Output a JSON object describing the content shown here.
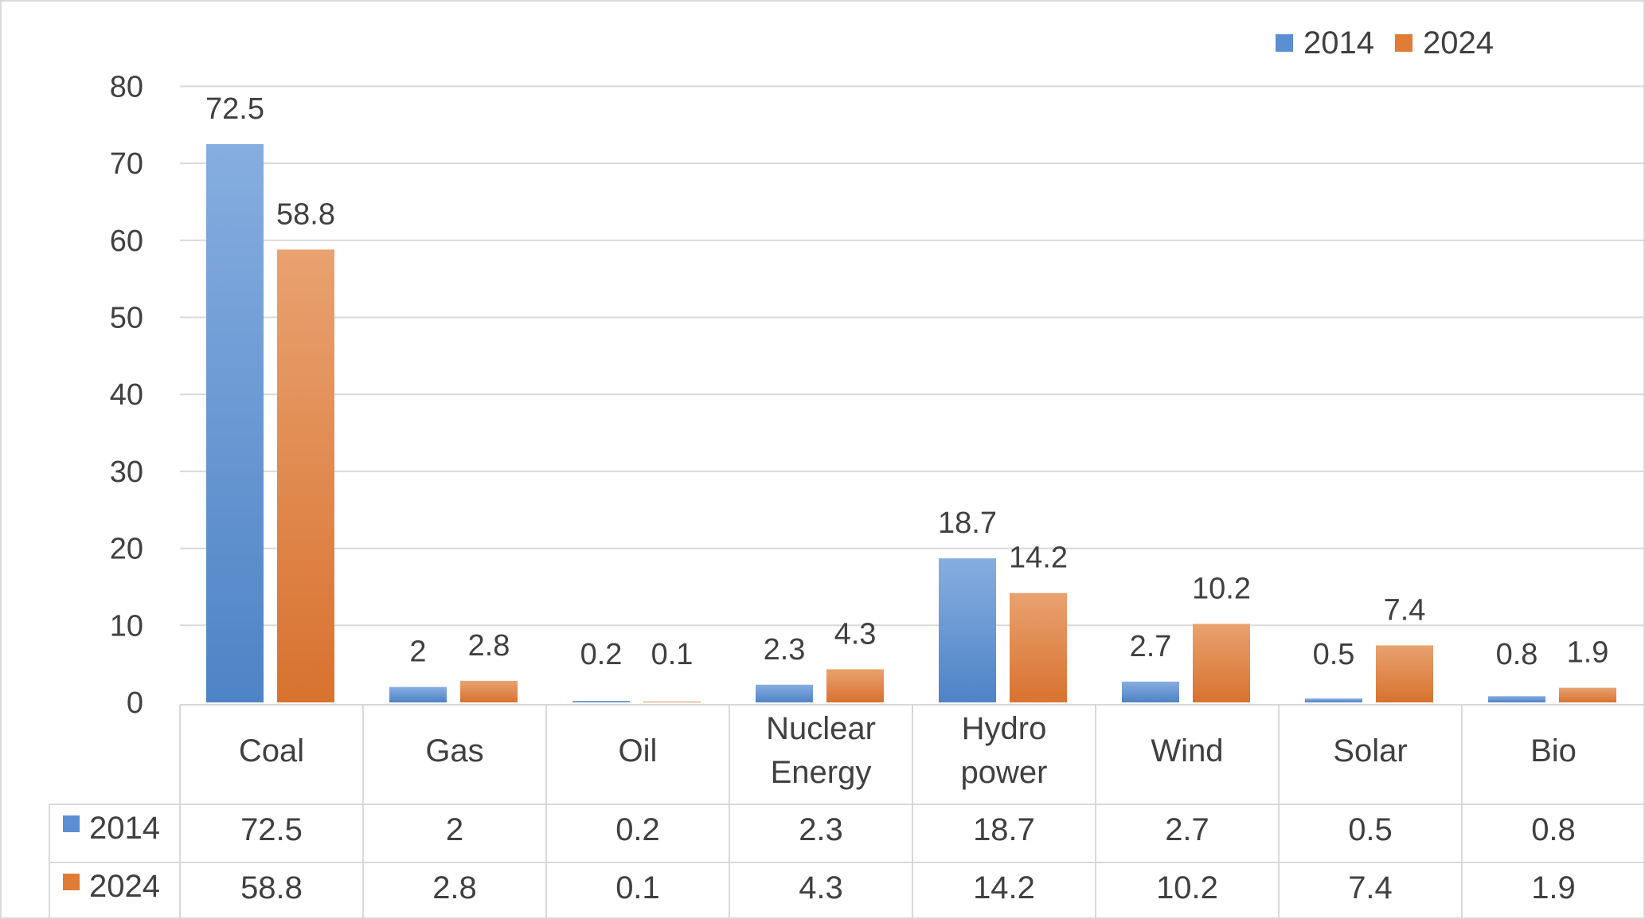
{
  "chart_data": {
    "type": "bar",
    "categories": [
      [
        "Coal"
      ],
      [
        "Gas"
      ],
      [
        "Oil"
      ],
      [
        "Nuclear",
        "Energy"
      ],
      [
        "Hydro",
        "power"
      ],
      [
        "Wind"
      ],
      [
        "Solar"
      ],
      [
        "Bio"
      ]
    ],
    "series": [
      {
        "name": "2014",
        "values": [
          72.5,
          2,
          0.2,
          2.3,
          18.7,
          2.7,
          0.5,
          0.8
        ],
        "labels": [
          "72.5",
          "2",
          "0.2",
          "2.3",
          "18.7",
          "2.7",
          "0.5",
          "0.8"
        ]
      },
      {
        "name": "2024",
        "values": [
          58.8,
          2.8,
          0.1,
          4.3,
          14.2,
          10.2,
          7.4,
          1.9
        ],
        "labels": [
          "58.8",
          "2.8",
          "0.1",
          "4.3",
          "14.2",
          "10.2",
          "7.4",
          "1.9"
        ]
      }
    ],
    "yticks": [
      "0",
      "10",
      "20",
      "30",
      "40",
      "50",
      "60",
      "70",
      "80"
    ],
    "ylim": [
      0,
      80
    ],
    "grid": true,
    "legend_position": "top-right",
    "data_table": true
  },
  "colors": {
    "s2014_light": "#86aee0",
    "s2014_dark": "#4e83c6",
    "s2014_legend": "#5b8fd3",
    "s2024_light": "#e9a270",
    "s2024_dark": "#d8722f",
    "s2024_legend": "#e07c36",
    "grid": "#d9d9d9",
    "text": "#404040",
    "frame": "#d9d9d9"
  }
}
